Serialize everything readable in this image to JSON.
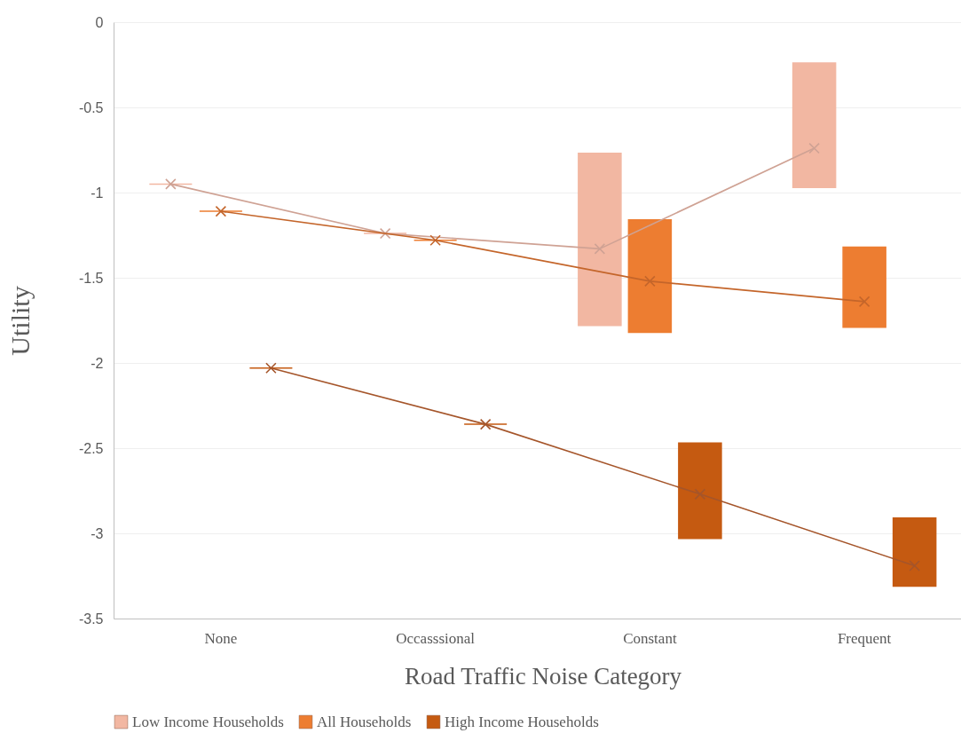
{
  "chart_data": {
    "type": "bar",
    "xlabel": "Road Traffic Noise Category",
    "ylabel": "Utility",
    "categories": [
      "None",
      "Occasssional",
      "Constant",
      "Frequent"
    ],
    "ylim": [
      -3.5,
      0
    ],
    "yticks": [
      -3.5,
      -3,
      -2.5,
      -2,
      -1.5,
      -1,
      -0.5,
      0
    ],
    "grid": "y",
    "legend": "bottom",
    "series": [
      {
        "name": "Low Income Households",
        "color": "#f2b7a2",
        "base": [
          -0.95,
          -1.24,
          -1.78,
          -0.97
        ],
        "values": [
          0,
          0,
          1.01,
          0.73
        ]
      },
      {
        "name": "All Households",
        "color": "#ed7d31",
        "base": [
          -1.11,
          -1.28,
          -1.82,
          -1.79
        ],
        "values": [
          0,
          0,
          0.66,
          0.47
        ]
      },
      {
        "name": "High Income Households",
        "color": "#c55a11",
        "base": [
          -2.03,
          -2.36,
          -3.03,
          -3.31
        ],
        "values": [
          0,
          0,
          0.56,
          0.4
        ]
      },
      {
        "type": "line",
        "color": "#cfa294",
        "marker": "cross",
        "values": [
          -0.95,
          -1.24,
          -1.33,
          -0.74
        ]
      },
      {
        "type": "line",
        "color": "#c4652a",
        "marker": "cross",
        "values": [
          -1.11,
          -1.28,
          -1.52,
          -1.64
        ]
      },
      {
        "type": "line",
        "color": "#a5552a",
        "marker": "cross",
        "values": [
          -2.03,
          -2.36,
          -2.77,
          -3.19
        ]
      }
    ]
  }
}
